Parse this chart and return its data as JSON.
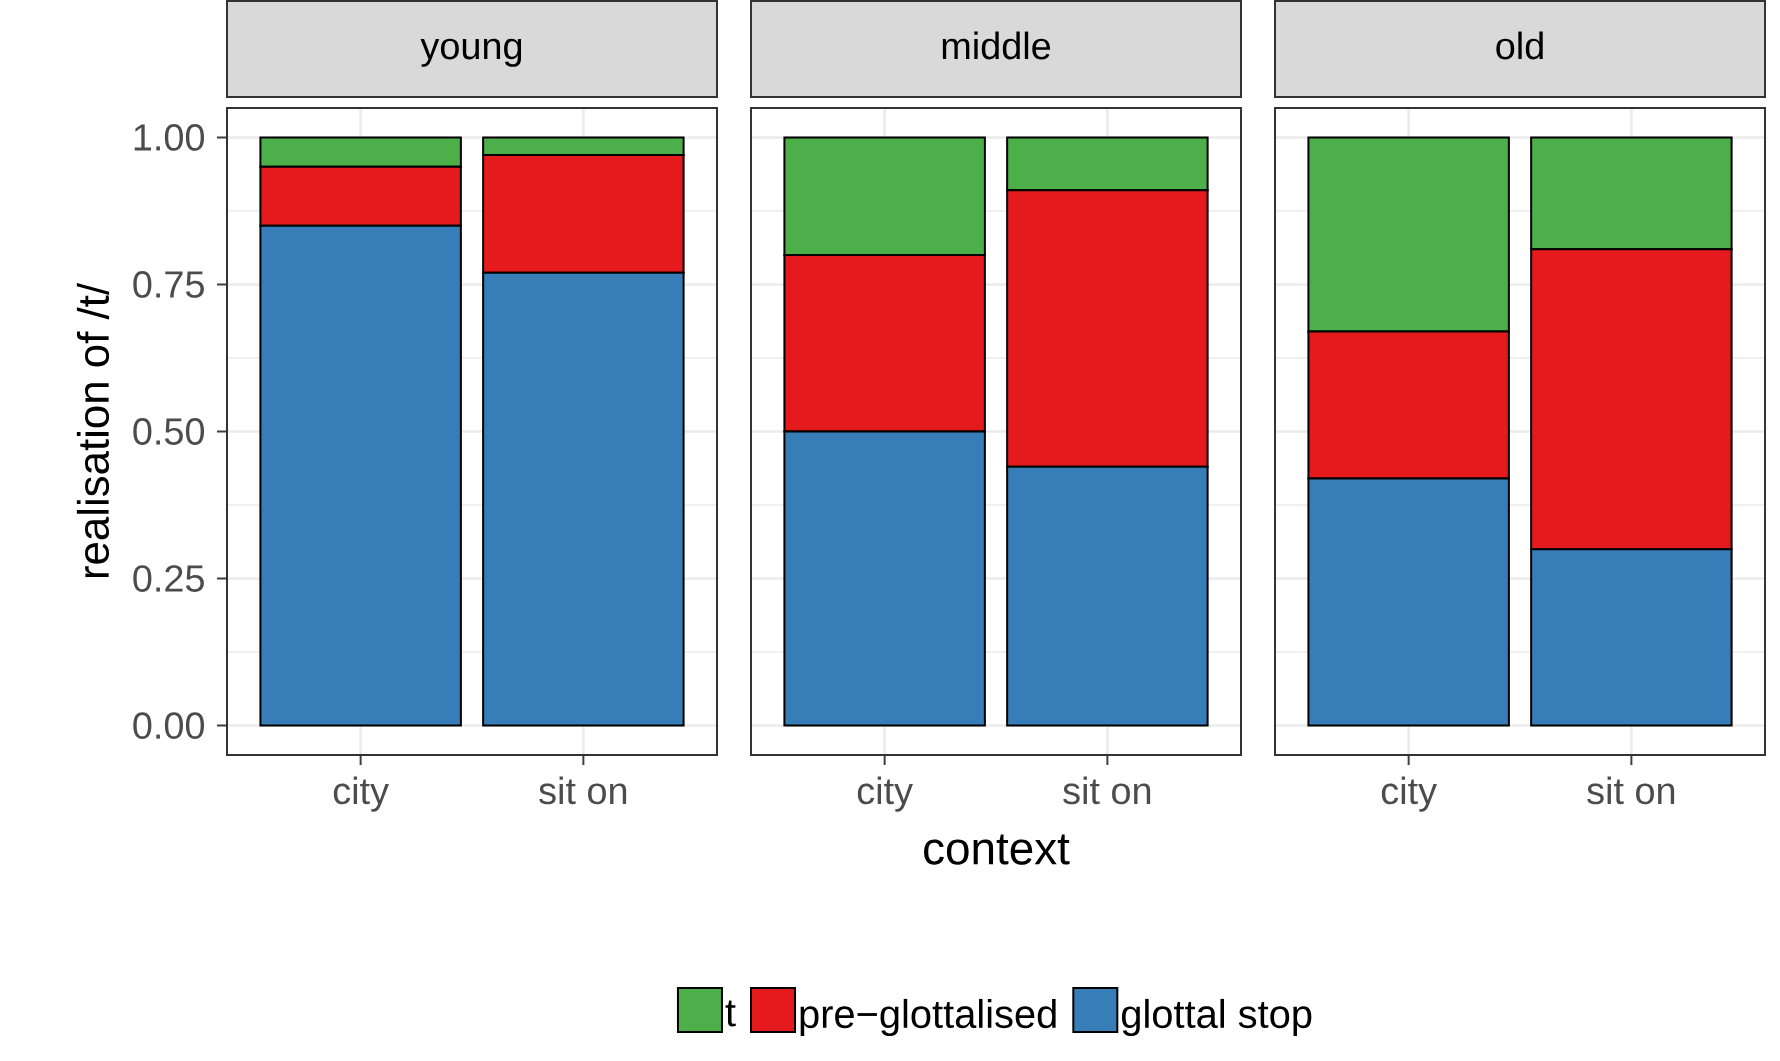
{
  "chart_data": [
    {
      "type": "bar",
      "title": "young",
      "stacked": true,
      "ylabel": "realisation of /t/",
      "categories": [
        "city",
        "sit on"
      ],
      "ylim": [
        -0.05,
        1.05
      ],
      "yticks": [
        {
          "value": 0,
          "label": "0.00"
        },
        {
          "value": 0.25,
          "label": "0.25"
        },
        {
          "value": 0.5,
          "label": "0.50"
        },
        {
          "value": 0.75,
          "label": "0.75"
        },
        {
          "value": 1,
          "label": "1.00"
        }
      ],
      "grid": true,
      "series": [
        {
          "color": "#377eb8",
          "values": [
            0.85,
            0.77
          ]
        },
        {
          "color": "#e41a1c",
          "values": [
            0.1,
            0.2
          ]
        },
        {
          "color": "#4daf4a",
          "values": [
            0.05,
            0.03
          ]
        }
      ]
    },
    {
      "type": "bar",
      "title": "middle",
      "stacked": true,
      "xlabel": "context",
      "categories": [
        "city",
        "sit on"
      ],
      "ylim": [
        -0.05,
        1.05
      ],
      "yticks": [
        {
          "value": 0,
          "label": null
        },
        {
          "value": 0.25,
          "label": null
        },
        {
          "value": 0.5,
          "label": null
        },
        {
          "value": 0.75,
          "label": null
        },
        {
          "value": 1,
          "label": null
        }
      ],
      "grid": true,
      "tick_labels": "x",
      "legend": "bottom",
      "series": [
        {
          "name": "glottal stop",
          "color": "#377eb8",
          "values": [
            0.5,
            0.44
          ]
        },
        {
          "name": "pre−glottalised",
          "color": "#e41a1c",
          "values": [
            0.3,
            0.47
          ]
        },
        {
          "name": "t",
          "color": "#4daf4a",
          "values": [
            0.2,
            0.09
          ]
        }
      ]
    },
    {
      "type": "bar",
      "title": "old",
      "stacked": true,
      "categories": [
        "city",
        "sit on"
      ],
      "ylim": [
        -0.05,
        1.05
      ],
      "yticks": [
        {
          "value": 0,
          "label": null
        },
        {
          "value": 0.25,
          "label": null
        },
        {
          "value": 0.5,
          "label": null
        },
        {
          "value": 0.75,
          "label": null
        },
        {
          "value": 1,
          "label": null
        }
      ],
      "grid": true,
      "tick_labels": "x",
      "series": [
        {
          "color": "#377eb8",
          "values": [
            0.42,
            0.3
          ]
        },
        {
          "color": "#e41a1c",
          "values": [
            0.25,
            0.51
          ]
        },
        {
          "color": "#4daf4a",
          "values": [
            0.33,
            0.19
          ]
        }
      ]
    }
  ]
}
